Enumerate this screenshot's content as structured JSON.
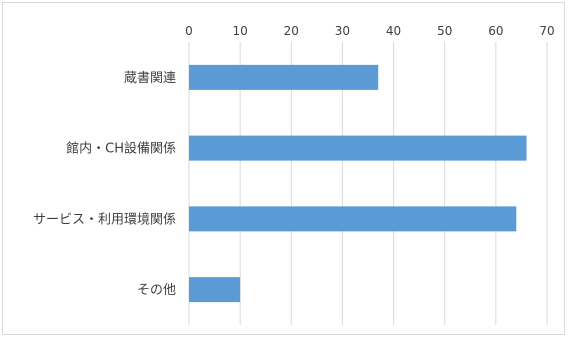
{
  "chart_data": {
    "type": "bar",
    "orientation": "horizontal",
    "categories": [
      "蔵書関連",
      "館内・CH設備関係",
      "サービス・利用環境関係",
      "その他"
    ],
    "series": [
      {
        "values": [
          37,
          66,
          64,
          10
        ]
      }
    ],
    "xlim": [
      0,
      70
    ],
    "x_ticks": [
      "0",
      "10",
      "20",
      "30",
      "40",
      "50",
      "60",
      "70"
    ],
    "x_axis_position": "top",
    "grid": true,
    "legend": "none",
    "title": "",
    "xlabel": "",
    "ylabel": "",
    "colors": {
      "bar": "#5b9bd5",
      "grid": "#d9d9d9",
      "text": "#404040",
      "border": "#d9d9d9"
    }
  }
}
